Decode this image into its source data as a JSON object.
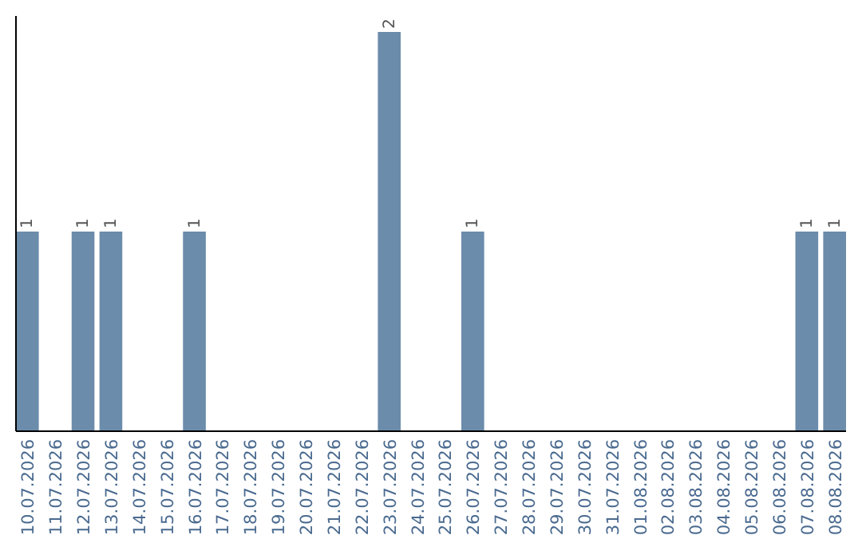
{
  "chart_data": {
    "type": "bar",
    "categories": [
      "10.07.2026",
      "11.07.2026",
      "12.07.2026",
      "13.07.2026",
      "14.07.2026",
      "15.07.2026",
      "16.07.2026",
      "17.07.2026",
      "18.07.2026",
      "19.07.2026",
      "20.07.2026",
      "21.07.2026",
      "22.07.2026",
      "23.07.2026",
      "24.07.2026",
      "25.07.2026",
      "26.07.2026",
      "27.07.2026",
      "28.07.2026",
      "29.07.2026",
      "30.07.2026",
      "31.07.2026",
      "01.08.2026",
      "02.08.2026",
      "03.08.2026",
      "04.08.2026",
      "05.08.2026",
      "06.08.2026",
      "07.08.2026",
      "08.08.2026"
    ],
    "values": [
      1,
      0,
      1,
      1,
      0,
      0,
      1,
      0,
      0,
      0,
      0,
      0,
      0,
      2,
      0,
      0,
      1,
      0,
      0,
      0,
      0,
      0,
      0,
      0,
      0,
      0,
      0,
      0,
      1,
      1
    ],
    "value_labels": [
      "1",
      null,
      "1",
      "1",
      null,
      null,
      "1",
      null,
      null,
      null,
      null,
      null,
      null,
      "2",
      null,
      null,
      "1",
      null,
      null,
      null,
      null,
      null,
      null,
      null,
      null,
      null,
      null,
      null,
      "1",
      "1"
    ],
    "color": "#6b8cab",
    "tick_labels": "x"
  }
}
